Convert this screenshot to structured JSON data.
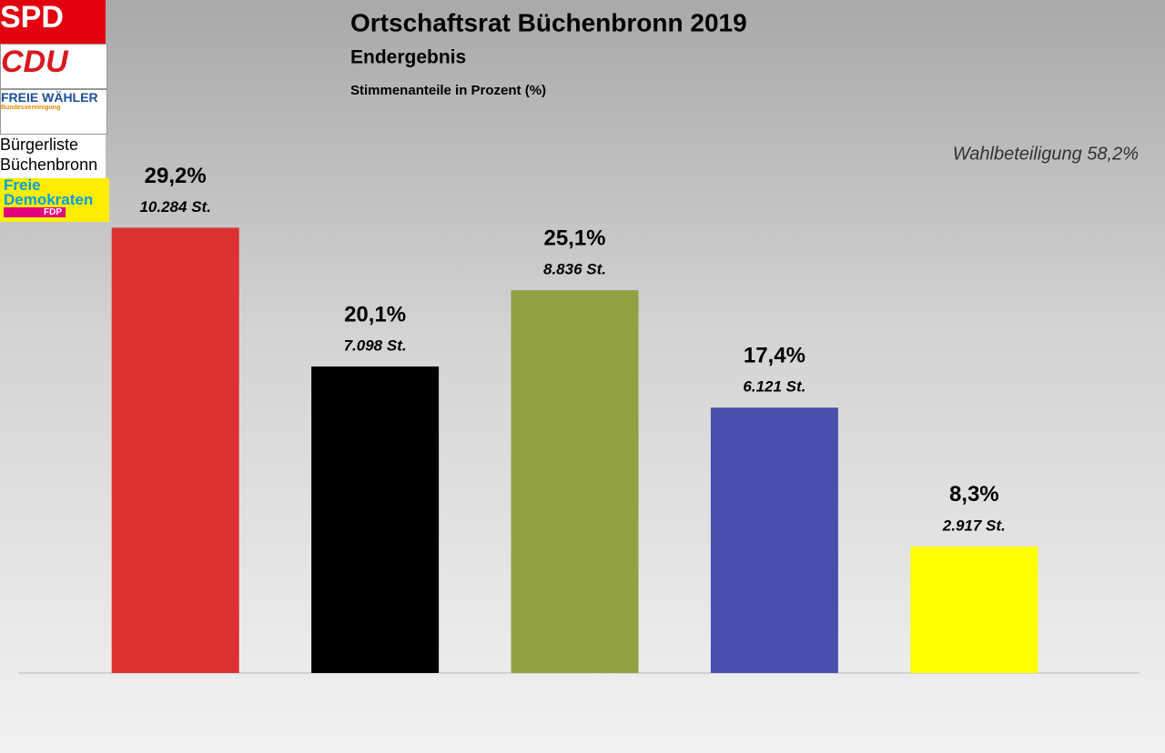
{
  "chart_data": {
    "type": "bar",
    "title": "Ortschaftsrat Büchenbronn 2019",
    "subtitle": "Endergebnis",
    "value_description": "Stimmenanteile in Prozent (%)",
    "annotation": "Wahlbeteiligung 58,2%",
    "categories": [
      "SPD",
      "CDU",
      "FREIE WÄHLER",
      "Bürgerliste Büchenbronn",
      "Freie Demokraten"
    ],
    "logo_subtexts": [
      null,
      null,
      "Bundesvereinigung",
      null,
      "FDP"
    ],
    "values": [
      29.2,
      20.1,
      25.1,
      17.4,
      8.3
    ],
    "value_labels": [
      "29,2%",
      "20,1%",
      "25,1%",
      "17,4%",
      "8,3%"
    ],
    "votes": [
      10284,
      7098,
      8836,
      6121,
      2917
    ],
    "vote_labels": [
      "10.284 St.",
      "7.098 St.",
      "8.836 St.",
      "6.121 St.",
      "2.917 St."
    ],
    "colors": [
      "#dc3131",
      "#000000",
      "#91a040",
      "#4a4fad",
      "#ffff00"
    ],
    "ylim": [
      0,
      30
    ]
  }
}
